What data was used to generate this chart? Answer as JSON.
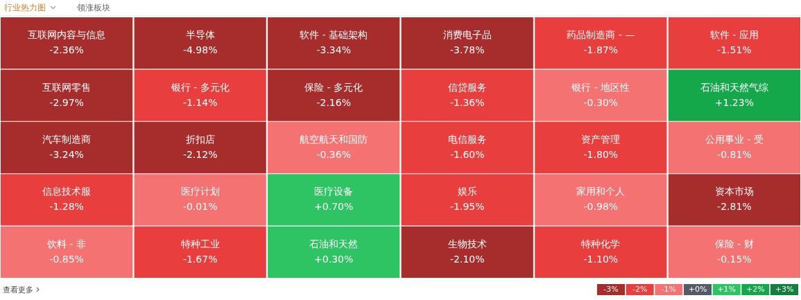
{
  "chart_data": [
    {
      "type": "other",
      "annotations": [
        "行业热力图",
        "领涨板块",
        "查看更多"
      ],
      "categories": [
        "互联网内容与信息",
        "半导体",
        "软件 - 基础架构",
        "消费电子品",
        "药品制造商 - —",
        "软件 - 应用",
        "互联网零售",
        "银行 - 多元化",
        "保险 - 多元化",
        "信贷服务",
        "银行 - 地区性",
        "石油和天然气综",
        "汽车制造商",
        "折扣店",
        "航空航天和国防",
        "电信服务",
        "资产管理",
        "公用事业 - 受",
        "信息技术服",
        "医疗计划",
        "医疗设备",
        "娱乐",
        "家用和个人",
        "资本市场",
        "饮料 - 非",
        "特种工业",
        "石油和天然",
        "生物技术",
        "特种化学",
        "保险 - 财"
      ],
      "values": [
        -2.36,
        -4.98,
        -3.34,
        -3.78,
        -1.87,
        -1.51,
        -2.97,
        -1.14,
        -2.16,
        -1.36,
        -0.3,
        1.23,
        -3.24,
        -2.12,
        -0.36,
        -1.6,
        -1.8,
        -0.81,
        -1.28,
        -0.01,
        0.7,
        -1.95,
        -0.98,
        -2.81,
        -0.85,
        -1.67,
        0.3,
        -2.1,
        -1.1,
        -0.15
      ],
      "value_labels": [
        "-2.36%",
        "-4.98%",
        "-3.34%",
        "-3.78%",
        "-1.87%",
        "-1.51%",
        "-2.97%",
        "-1.14%",
        "-2.16%",
        "-1.36%",
        "-0.30%",
        "+1.23%",
        "-3.24%",
        "-2.12%",
        "-0.36%",
        "-1.60%",
        "-1.80%",
        "-0.81%",
        "-1.28%",
        "-0.01%",
        "+0.70%",
        "-1.95%",
        "-0.98%",
        "-2.81%",
        "-0.85%",
        "-1.67%",
        "+0.30%",
        "-2.10%",
        "-1.10%",
        "-0.15%"
      ]
    },
    {
      "type": "heatmap",
      "y_categories": [
        null
      ],
      "categories": [
        null,
        null,
        null,
        null,
        null,
        null,
        null
      ],
      "cells": [
        [
          -3,
          -2,
          -1,
          0,
          1,
          2,
          3
        ]
      ],
      "cell_labels": [
        [
          "-3%",
          "-2%",
          "-1%",
          "+0%",
          "+1%",
          "+2%",
          "+3%"
        ]
      ],
      "colors": [
        "#a72c2c",
        "#e83e3e",
        "#f47272",
        "#555a66",
        "#2ec464",
        "#14a84a",
        "#12803c"
      ]
    }
  ]
}
